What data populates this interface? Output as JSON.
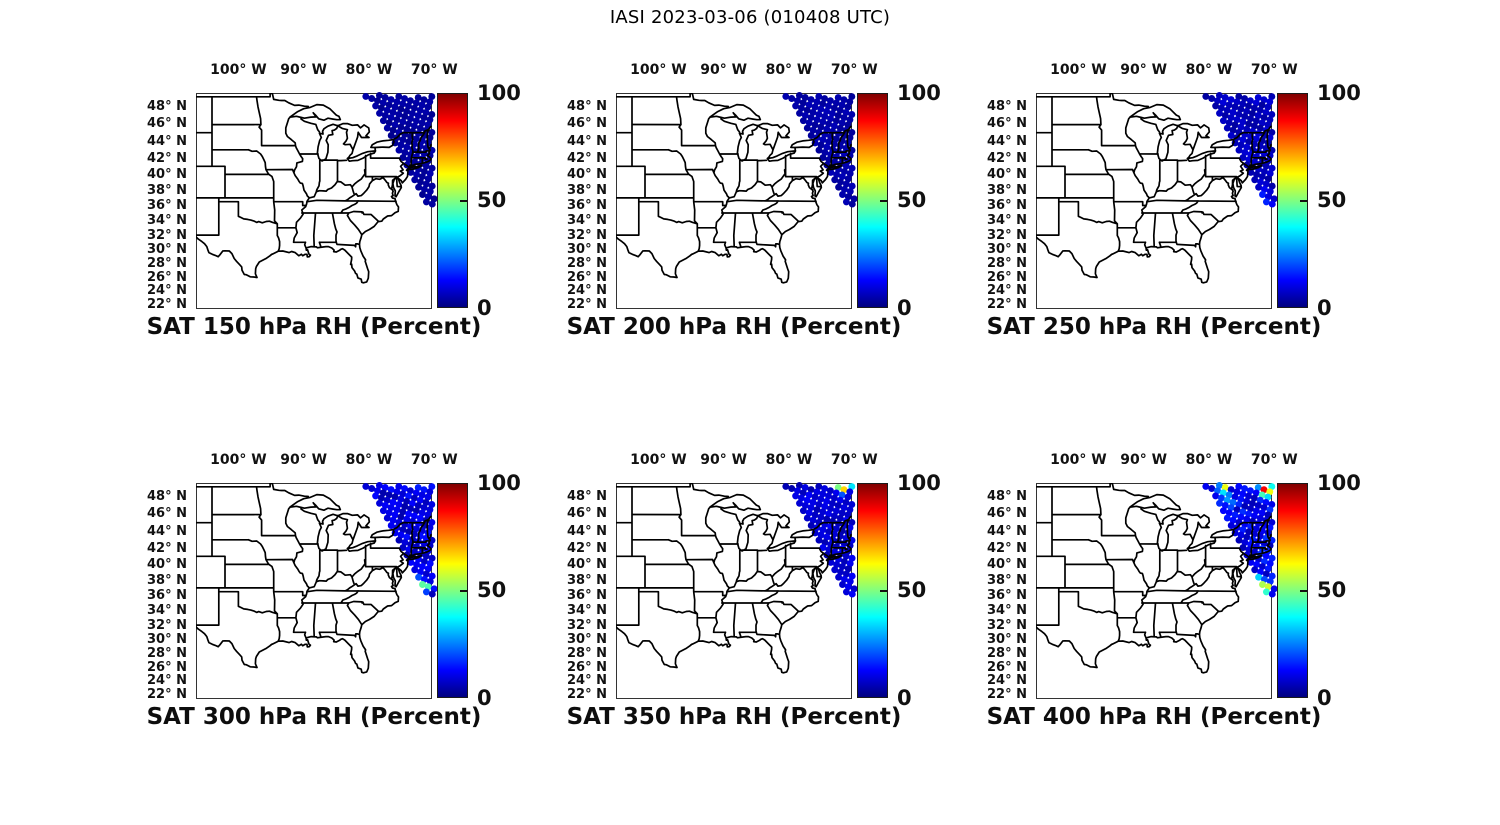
{
  "figure": {
    "title": "IASI 2023-03-06 (010408 UTC)"
  },
  "chart_data": {
    "type": "map-scatter",
    "figure_title": "IASI 2023-03-06 (010408 UTC)",
    "instrument": "IASI",
    "date": "2023-03-06",
    "time_utc": "010408 UTC",
    "variable": "RH (Percent)",
    "colormap": "jet",
    "colorbar": {
      "min": 0,
      "max": 100,
      "tick_labels_top_down": [
        "100",
        "50",
        "0"
      ]
    },
    "map": {
      "projection": "mercator",
      "lon_min": -106.5,
      "lon_max": -70.5,
      "lat_min": 21.4,
      "lat_max": 49.4,
      "lon_ticks": [
        -100,
        -90,
        -80,
        -70
      ],
      "lon_tick_labels": [
        "100° W",
        "90° W",
        "80° W",
        "70° W"
      ],
      "lat_ticks": [
        48,
        46,
        44,
        42,
        40,
        38,
        36,
        34,
        32,
        30,
        28,
        26,
        24,
        22
      ],
      "lat_tick_labels": [
        "48° N",
        "46° N",
        "44° N",
        "42° N",
        "40° N",
        "38° N",
        "36° N",
        "34° N",
        "32° N",
        "30° N",
        "28° N",
        "26° N",
        "24° N",
        "22° N"
      ]
    },
    "swath": {
      "description": "IASI descending overpass swath over the northeastern US and western Atlantic",
      "top_edge_lon_range": [
        -80.5,
        -70.5
      ],
      "left_edge_line_lonlat": [
        [
          -80.5,
          49.4
        ],
        [
          -70.3,
          35.0
        ]
      ],
      "bottom_cut_line_lonlat": [
        [
          -75.6,
          36.5
        ],
        [
          -69.8,
          34.4
        ]
      ]
    },
    "panels": [
      {
        "title": "SAT 150 hPa RH (Percent)",
        "pressure_hpa": 150,
        "base_rh": 3,
        "noise": 1.5,
        "features": []
      },
      {
        "title": "SAT 200 hPa RH (Percent)",
        "pressure_hpa": 200,
        "base_rh": 4,
        "noise": 1.5,
        "features": []
      },
      {
        "title": "SAT 250 hPa RH (Percent)",
        "pressure_hpa": 250,
        "base_rh": 6,
        "noise": 3,
        "features": [
          {
            "lon": -71.6,
            "lat": 37.6,
            "rx": 0.9,
            "ry": 0.6,
            "rh": 16
          },
          {
            "lon": -70.8,
            "lat": 36.4,
            "rx": 0.5,
            "ry": 0.4,
            "rh": 22
          },
          {
            "lon": -70.9,
            "lat": 35.5,
            "rx": 0.4,
            "ry": 0.3,
            "rh": 26
          },
          {
            "lon": -71.3,
            "lat": 48.9,
            "rx": 0.9,
            "ry": 0.5,
            "rh": 9
          },
          {
            "lon": -72.2,
            "lat": 41.2,
            "rx": 0.9,
            "ry": 1.0,
            "rh": 5
          }
        ]
      },
      {
        "title": "SAT 300 hPa RH (Percent)",
        "pressure_hpa": 300,
        "base_rh": 9,
        "noise": 5,
        "features": [
          {
            "lon": -74.0,
            "lat": 49.1,
            "rx": 0.7,
            "ry": 0.4,
            "rh": 22
          },
          {
            "lon": -72.1,
            "lat": 48.7,
            "rx": 0.7,
            "ry": 0.5,
            "rh": 19
          },
          {
            "lon": -70.8,
            "lat": 49.3,
            "rx": 0.5,
            "ry": 0.35,
            "rh": 27
          },
          {
            "lon": -72.3,
            "lat": 42.6,
            "rx": 0.9,
            "ry": 1.3,
            "rh": 7
          },
          {
            "lon": -72.7,
            "lat": 38.3,
            "rx": 0.55,
            "ry": 0.35,
            "rh": 24
          },
          {
            "lon": -72.4,
            "lat": 37.45,
            "rx": 1.05,
            "ry": 0.3,
            "rh": 62,
            "rot": 20
          },
          {
            "lon": -71.1,
            "lat": 37.1,
            "rx": 0.45,
            "ry": 0.28,
            "rh": 52,
            "rot": 20
          },
          {
            "lon": -72.3,
            "lat": 36.4,
            "rx": 1.1,
            "ry": 0.5,
            "rh": 38,
            "rot": 20
          },
          {
            "lon": -71.4,
            "lat": 35.7,
            "rx": 0.6,
            "ry": 0.4,
            "rh": 30
          }
        ]
      },
      {
        "title": "SAT 350 hPa RH (Percent)",
        "pressure_hpa": 350,
        "base_rh": 8,
        "noise": 4,
        "features": [
          {
            "lon": -74.3,
            "lat": 49.3,
            "rx": 0.38,
            "ry": 0.3,
            "rh": 46
          },
          {
            "lon": -73.2,
            "lat": 49.4,
            "rx": 0.32,
            "ry": 0.27,
            "rh": 42
          },
          {
            "lon": -71.9,
            "lat": 48.9,
            "rx": 0.5,
            "ry": 0.45,
            "rh": 93
          },
          {
            "lon": -71.4,
            "lat": 48.45,
            "rx": 0.33,
            "ry": 0.27,
            "rh": 58
          },
          {
            "lon": -70.7,
            "lat": 49.0,
            "rx": 0.38,
            "ry": 0.3,
            "rh": 50
          },
          {
            "lon": -72.6,
            "lat": 48.9,
            "rx": 0.3,
            "ry": 0.25,
            "rh": 35
          },
          {
            "lon": -71.8,
            "lat": 41.8,
            "rx": 0.8,
            "ry": 1.0,
            "rh": 6
          },
          {
            "lon": -72.8,
            "lat": 37.8,
            "rx": 0.5,
            "ry": 0.32,
            "rh": 40
          },
          {
            "lon": -72.0,
            "lat": 36.9,
            "rx": 0.5,
            "ry": 0.32,
            "rh": 32
          }
        ]
      },
      {
        "title": "SAT 400 hPa RH (Percent)",
        "pressure_hpa": 400,
        "base_rh": 11,
        "noise": 6,
        "features": [
          {
            "lon": -71.3,
            "lat": 48.7,
            "rx": 0.75,
            "ry": 0.6,
            "rh": 94
          },
          {
            "lon": -77.6,
            "lat": 49.2,
            "rx": 0.5,
            "ry": 0.35,
            "rh": 85
          },
          {
            "lon": -73.7,
            "lat": 49.35,
            "rx": 0.32,
            "ry": 0.26,
            "rh": 65
          },
          {
            "lon": -72.5,
            "lat": 49.3,
            "rx": 0.3,
            "ry": 0.25,
            "rh": 45
          },
          {
            "lon": -78.1,
            "lat": 48.6,
            "rx": 0.5,
            "ry": 0.6,
            "rh": 45
          },
          {
            "lon": -76.8,
            "lat": 47.5,
            "rx": 0.5,
            "ry": 0.7,
            "rh": 38
          },
          {
            "lon": -73.0,
            "lat": 43.6,
            "rx": 0.7,
            "ry": 1.5,
            "rh": 8
          },
          {
            "lon": -72.3,
            "lat": 38.5,
            "rx": 0.6,
            "ry": 0.4,
            "rh": 35,
            "rot": 20
          },
          {
            "lon": -72.4,
            "lat": 37.4,
            "rx": 1.0,
            "ry": 0.35,
            "rh": 75,
            "rot": 20
          },
          {
            "lon": -71.9,
            "lat": 37.8,
            "rx": 0.5,
            "ry": 0.3,
            "rh": 55,
            "rot": 20
          },
          {
            "lon": -71.2,
            "lat": 36.9,
            "rx": 0.5,
            "ry": 0.35,
            "rh": 90
          },
          {
            "lon": -72.0,
            "lat": 36.2,
            "rx": 1.1,
            "ry": 0.55,
            "rh": 45,
            "rot": 20
          },
          {
            "lon": -70.9,
            "lat": 35.8,
            "rx": 0.5,
            "ry": 0.4,
            "rh": 35
          }
        ]
      }
    ]
  }
}
